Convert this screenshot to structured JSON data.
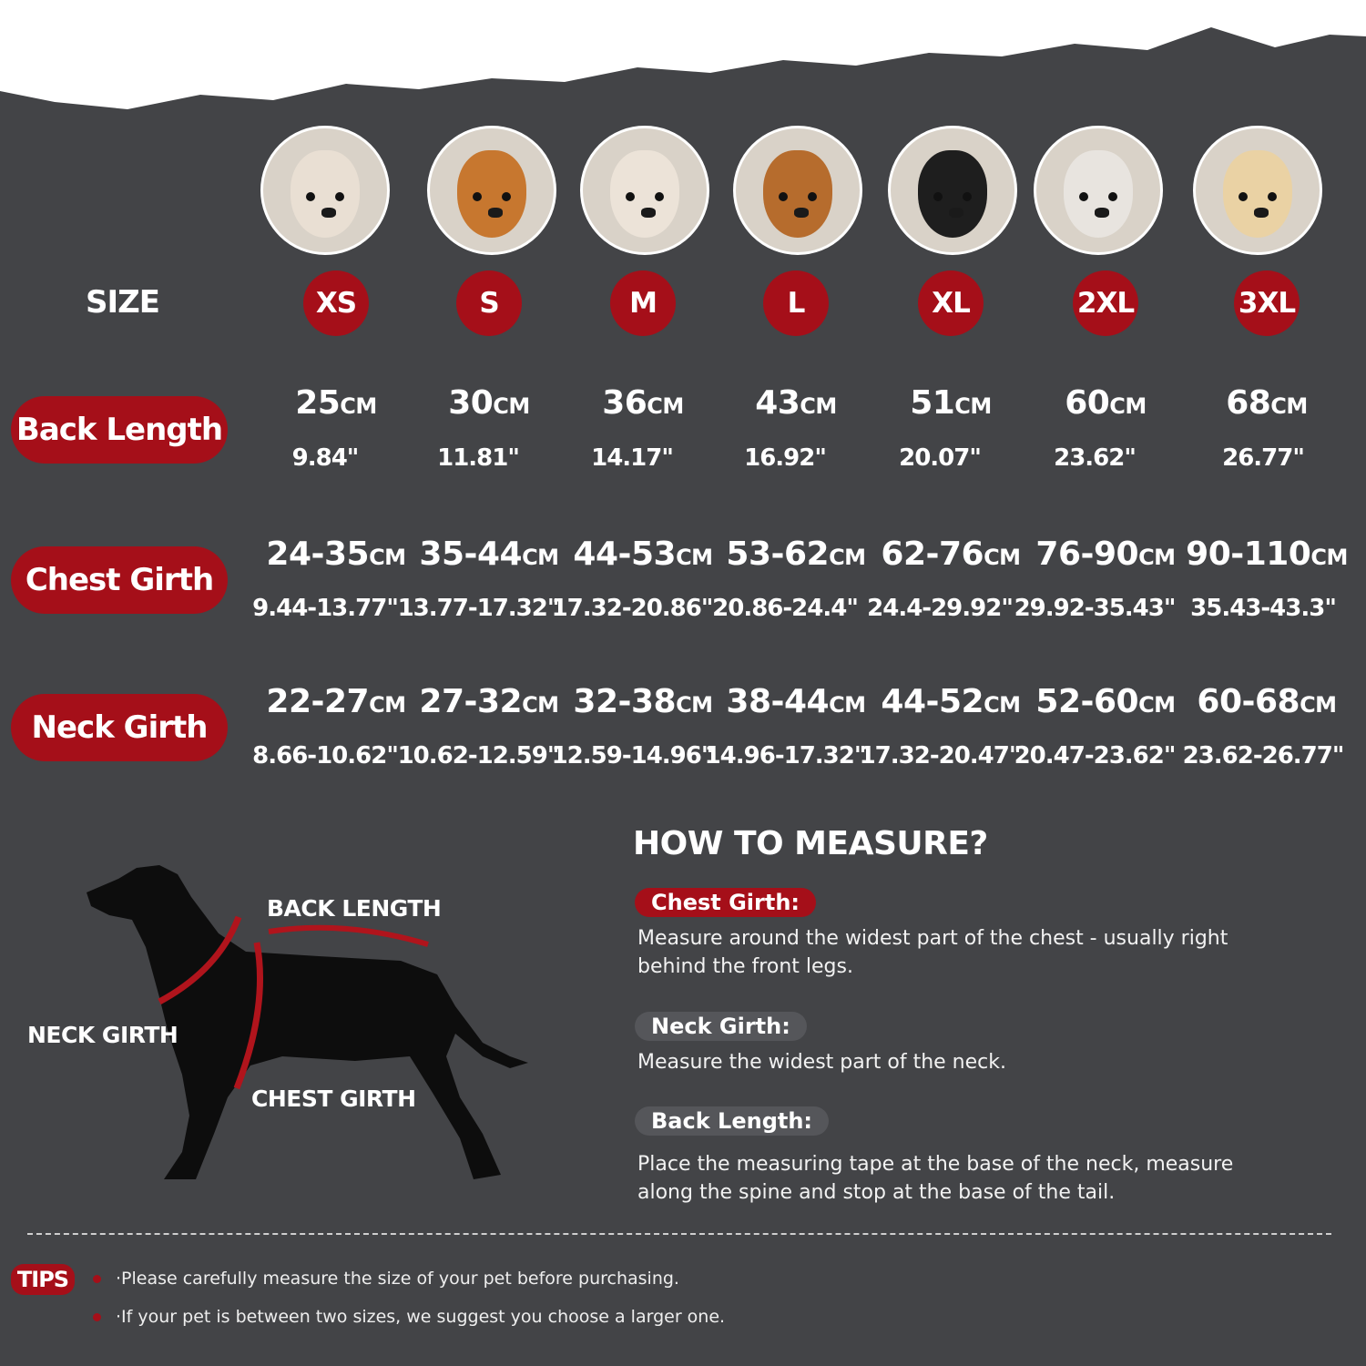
{
  "colors": {
    "background": "#434447",
    "accent": "#a50f19",
    "secondary_pill": "#55565a"
  },
  "size_label": "SIZE",
  "sizes": [
    "XS",
    "S",
    "M",
    "L",
    "XL",
    "2XL",
    "3XL"
  ],
  "dog_photos": [
    {
      "breed_icon": "chihuahua-photo",
      "color": "#e9dfd3"
    },
    {
      "breed_icon": "pomeranian-photo",
      "color": "#c7772f"
    },
    {
      "breed_icon": "french-bulldog-photo",
      "color": "#ece3d8"
    },
    {
      "breed_icon": "beagle-photo",
      "color": "#b66c2d"
    },
    {
      "breed_icon": "border-collie-photo",
      "color": "#1e1e1e"
    },
    {
      "breed_icon": "pitbull-photo",
      "color": "#e8e4df"
    },
    {
      "breed_icon": "labrador-photo",
      "color": "#ead2a4"
    }
  ],
  "rows": [
    {
      "label": "Back Length",
      "unit": "CM",
      "cm": [
        "25",
        "30",
        "36",
        "43",
        "51",
        "60",
        "68"
      ],
      "inch": [
        "9.84\"",
        "11.81\"",
        "14.17\"",
        "16.92\"",
        "20.07\"",
        "23.62\"",
        "26.77\""
      ]
    },
    {
      "label": "Chest Girth",
      "unit": "CM",
      "cm": [
        "24-35",
        "35-44",
        "44-53",
        "53-62",
        "62-76",
        "76-90",
        "90-110"
      ],
      "inch": [
        "9.44-13.77\"",
        "13.77-17.32\"",
        "17.32-20.86\"",
        "20.86-24.4\"",
        "24.4-29.92\"",
        "29.92-35.43\"",
        "35.43-43.3\""
      ]
    },
    {
      "label": "Neck Girth",
      "unit": "CM",
      "cm": [
        "22-27",
        "27-32",
        "32-38",
        "38-44",
        "44-52",
        "52-60",
        "60-68"
      ],
      "inch": [
        "8.66-10.62\"",
        "10.62-12.59\"",
        "12.59-14.96\"",
        "14.96-17.32\"",
        "17.32-20.47\"",
        "20.47-23.62\"",
        "23.62-26.77\""
      ]
    }
  ],
  "diagram": {
    "back_length": "BACK LENGTH",
    "neck_girth": "NECK GIRTH",
    "chest_girth": "CHEST GIRTH"
  },
  "how_to": {
    "title": "HOW TO MEASURE?",
    "items": [
      {
        "label": "Chest Girth:",
        "text": "Measure around the widest part of the chest - usually right behind the front legs."
      },
      {
        "label": "Neck Girth:",
        "text": "Measure the widest part of the neck."
      },
      {
        "label": "Back Length:",
        "text": "Place the measuring tape at the base of the neck, measure along the spine and stop at the base of the tail."
      }
    ]
  },
  "tips": {
    "label": "TIPS",
    "items": [
      "·Please carefully measure the size of your pet before purchasing.",
      "·If your pet is between two sizes, we suggest you choose a larger one."
    ]
  }
}
